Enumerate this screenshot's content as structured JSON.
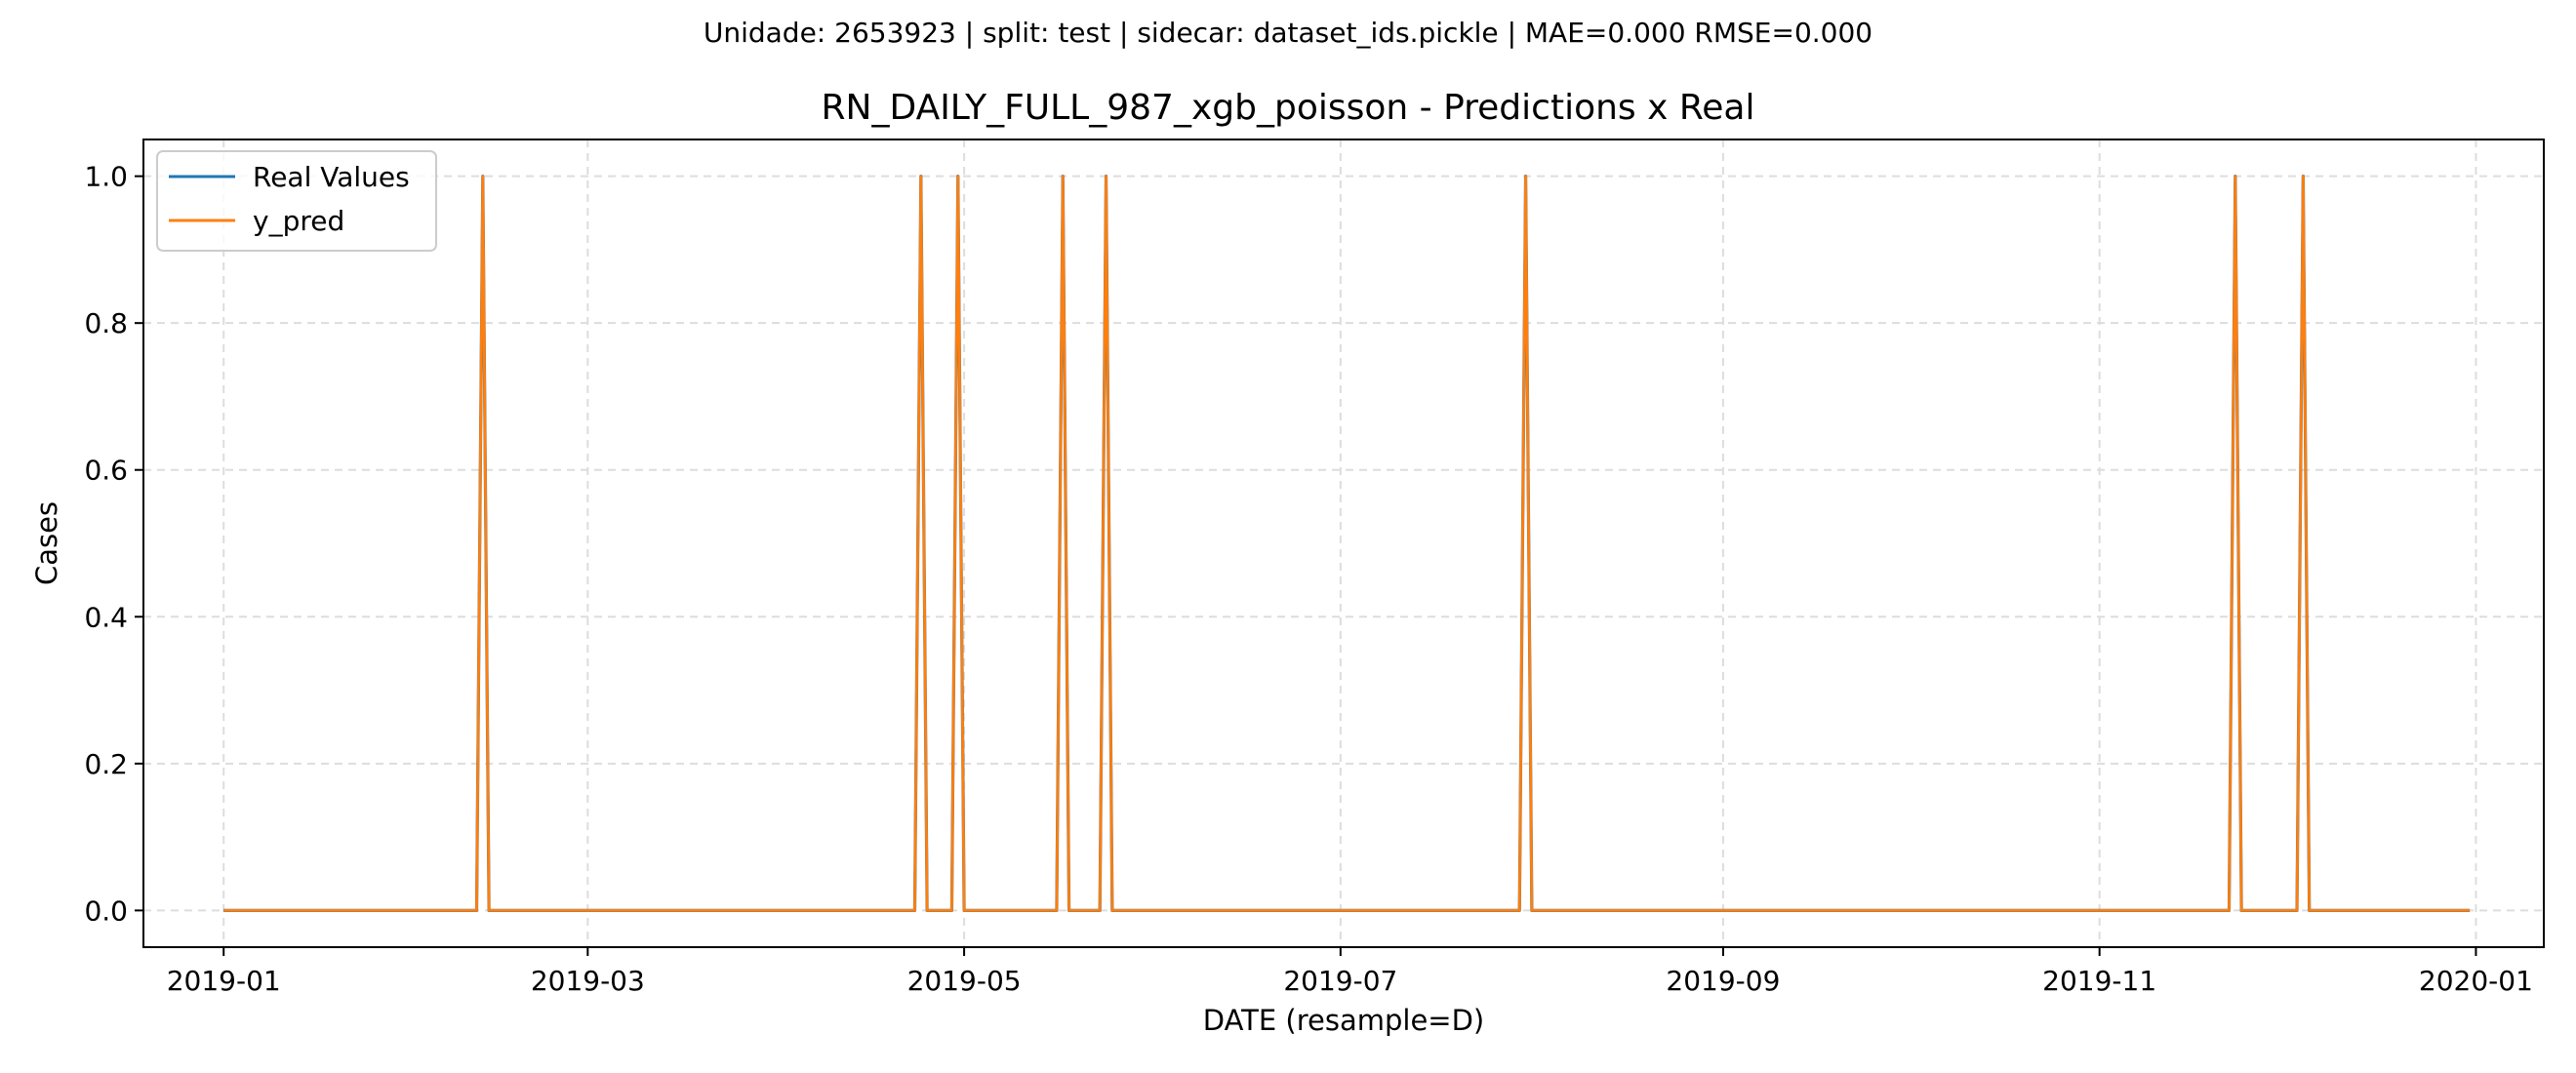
{
  "chart_data": {
    "type": "line",
    "suptitle": "Unidade: 2653923 | split: test | sidecar: dataset_ids.pickle | MAE=0.000  RMSE=0.000",
    "title": "RN_DAILY_FULL_987_xgb_poisson - Predictions x Real",
    "xlabel": "DATE (resample=D)",
    "ylabel": "Cases",
    "x_range": [
      "2018-12-19",
      "2020-01-12"
    ],
    "ylim": [
      -0.05,
      1.05
    ],
    "grid": true,
    "legend_position": "upper-left",
    "x_ticks": [
      {
        "date": "2019-01-01",
        "label": "2019-01"
      },
      {
        "date": "2019-03-01",
        "label": "2019-03"
      },
      {
        "date": "2019-05-01",
        "label": "2019-05"
      },
      {
        "date": "2019-07-01",
        "label": "2019-07"
      },
      {
        "date": "2019-09-01",
        "label": "2019-09"
      },
      {
        "date": "2019-11-01",
        "label": "2019-11"
      },
      {
        "date": "2020-01-01",
        "label": "2020-01"
      }
    ],
    "y_ticks": [
      {
        "value": 0.0,
        "label": "0.0"
      },
      {
        "value": 0.2,
        "label": "0.2"
      },
      {
        "value": 0.4,
        "label": "0.4"
      },
      {
        "value": 0.6,
        "label": "0.6"
      },
      {
        "value": 0.8,
        "label": "0.8"
      },
      {
        "value": 1.0,
        "label": "1.0"
      }
    ],
    "date_start": "2019-01-01",
    "date_end": "2019-12-31",
    "baseline_value": 0,
    "spike_value": 1,
    "series": [
      {
        "name": "Real Values",
        "color": "#1f77b4",
        "spike_dates": [
          "2019-02-12",
          "2019-04-24",
          "2019-04-30",
          "2019-05-17",
          "2019-05-24",
          "2019-07-31",
          "2019-11-23",
          "2019-12-04"
        ]
      },
      {
        "name": "y_pred",
        "color": "#ff7f0e",
        "spike_dates": [
          "2019-02-12",
          "2019-04-24",
          "2019-04-30",
          "2019-05-17",
          "2019-05-24",
          "2019-07-31",
          "2019-11-23",
          "2019-12-04"
        ]
      }
    ]
  }
}
